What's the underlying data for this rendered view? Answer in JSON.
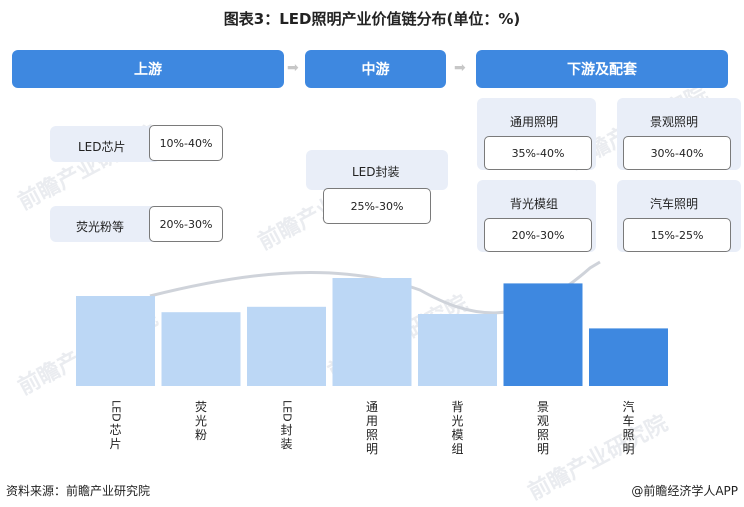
{
  "title": "图表3：LED照明产业价值链分布(单位：%)",
  "stages": {
    "upstream": "上游",
    "midstream": "中游",
    "downstream": "下游及配套"
  },
  "upstream_items": [
    {
      "label": "LED芯片",
      "range": "10%-40%"
    },
    {
      "label": "荧光粉等",
      "range": "20%-30%"
    }
  ],
  "midstream_items": [
    {
      "label": "LED封装",
      "range": "25%-30%"
    }
  ],
  "downstream_items": [
    {
      "label": "通用照明",
      "range": "35%-40%"
    },
    {
      "label": "景观照明",
      "range": "30%-40%"
    },
    {
      "label": "背光模组",
      "range": "20%-30%"
    },
    {
      "label": "汽车照明",
      "range": "15%-25%"
    }
  ],
  "chart_data": {
    "type": "bar",
    "categories": [
      "LED芯片",
      "荧光粉",
      "LED封装",
      "通用照明",
      "背光模组",
      "景观照明",
      "汽车照明"
    ],
    "values": [
      25,
      20.5,
      22,
      30,
      20,
      28.5,
      16
    ],
    "bar_colors": [
      "#bcd7f5",
      "#bcd7f5",
      "#bcd7f5",
      "#bcd7f5",
      "#bcd7f5",
      "#3e88e0",
      "#3e88e0"
    ],
    "trend_curve": true
  },
  "footer": {
    "source": "资料来源：前瞻产业研究院",
    "brand": "@前瞻经济学人APP"
  },
  "watermark": "前瞻产业研究院",
  "colors": {
    "accent": "#3e88e0",
    "light_bar": "#bcd7f5",
    "panel": "#e9eef8"
  }
}
